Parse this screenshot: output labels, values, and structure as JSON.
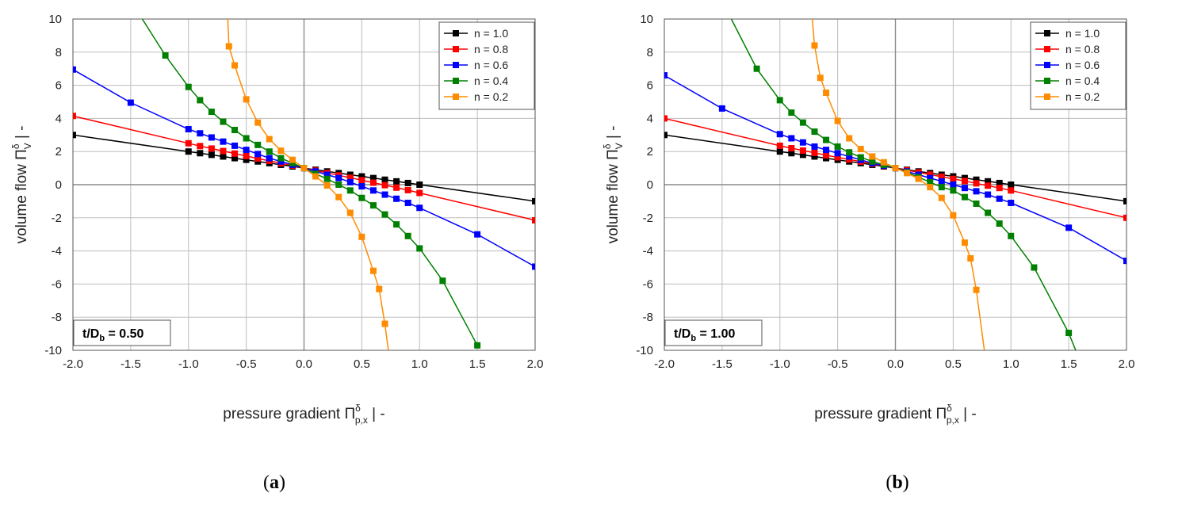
{
  "chart_data": [
    {
      "id": "a",
      "type": "line",
      "annotation": "t/D",
      "annotation_sub": "b",
      "annotation_value": " = 0.50",
      "xlabel": "pressure gradient Π",
      "xlabel_sup": "δ",
      "xlabel_sub": "p,x",
      "xlabel_unit": "  |  -",
      "ylabel": "volume flow Π",
      "ylabel_sup": "δ",
      "ylabel_sub": "V",
      "ylabel_unit": "  |  -",
      "xlim": [
        -2.0,
        2.0
      ],
      "ylim": [
        -10,
        10
      ],
      "xticks": [
        "-2.0",
        "-1.5",
        "-1.0",
        "-0.5",
        "0.0",
        "0.5",
        "1.0",
        "1.5",
        "2.0"
      ],
      "yticks": [
        "10",
        "8",
        "6",
        "4",
        "2",
        "0",
        "-2",
        "-4",
        "-6",
        "-8",
        "-10"
      ],
      "legend_position": "top-right",
      "series": [
        {
          "name": "n = 1.0",
          "color": "#000000",
          "x": [
            -2.0,
            -1.0,
            -0.9,
            -0.8,
            -0.7,
            -0.6,
            -0.5,
            -0.4,
            -0.3,
            -0.2,
            -0.1,
            0.0,
            0.1,
            0.2,
            0.3,
            0.4,
            0.5,
            0.6,
            0.7,
            0.8,
            0.9,
            1.0,
            2.0
          ],
          "y": [
            3.0,
            2.0,
            1.9,
            1.8,
            1.7,
            1.6,
            1.5,
            1.4,
            1.3,
            1.2,
            1.1,
            1.0,
            0.9,
            0.8,
            0.7,
            0.6,
            0.5,
            0.4,
            0.3,
            0.2,
            0.1,
            0.0,
            -1.0
          ]
        },
        {
          "name": "n = 0.8",
          "color": "#ff0000",
          "x": [
            -2.0,
            -1.0,
            -0.9,
            -0.8,
            -0.7,
            -0.6,
            -0.5,
            -0.4,
            -0.3,
            -0.2,
            -0.1,
            0.0,
            0.1,
            0.2,
            0.3,
            0.4,
            0.5,
            0.6,
            0.7,
            0.8,
            0.9,
            1.0,
            2.0
          ],
          "y": [
            4.15,
            2.5,
            2.33,
            2.18,
            2.03,
            1.88,
            1.73,
            1.58,
            1.44,
            1.29,
            1.15,
            1.0,
            0.85,
            0.71,
            0.56,
            0.42,
            0.27,
            0.12,
            -0.03,
            -0.18,
            -0.33,
            -0.5,
            -2.15
          ]
        },
        {
          "name": "n = 0.6",
          "color": "#0000ff",
          "x": [
            -2.0,
            -1.5,
            -1.0,
            -0.9,
            -0.8,
            -0.7,
            -0.6,
            -0.5,
            -0.4,
            -0.3,
            -0.2,
            -0.1,
            0.0,
            0.1,
            0.2,
            0.3,
            0.4,
            0.5,
            0.6,
            0.7,
            0.8,
            0.9,
            1.0,
            1.5,
            2.0
          ],
          "y": [
            6.95,
            4.95,
            3.35,
            3.1,
            2.85,
            2.6,
            2.35,
            2.1,
            1.85,
            1.6,
            1.4,
            1.2,
            1.0,
            0.8,
            0.6,
            0.4,
            0.15,
            -0.1,
            -0.35,
            -0.6,
            -0.85,
            -1.1,
            -1.4,
            -3.0,
            -4.95
          ]
        },
        {
          "name": "n = 0.4",
          "color": "#008000",
          "x": [
            -1.4,
            -1.2,
            -1.0,
            -0.9,
            -0.8,
            -0.7,
            -0.6,
            -0.5,
            -0.4,
            -0.3,
            -0.2,
            -0.1,
            0.0,
            0.1,
            0.2,
            0.3,
            0.4,
            0.5,
            0.6,
            0.7,
            0.8,
            0.9,
            1.0,
            1.2,
            1.5
          ],
          "y": [
            10.0,
            7.8,
            5.9,
            5.1,
            4.4,
            3.8,
            3.3,
            2.8,
            2.4,
            2.0,
            1.6,
            1.3,
            1.0,
            0.65,
            0.35,
            0.0,
            -0.35,
            -0.8,
            -1.25,
            -1.8,
            -2.4,
            -3.1,
            -3.85,
            -5.8,
            -9.7
          ]
        },
        {
          "name": "n = 0.2",
          "color": "#ff8c00",
          "x": [
            -0.66,
            -0.65,
            -0.6,
            -0.5,
            -0.4,
            -0.3,
            -0.2,
            -0.1,
            0.0,
            0.1,
            0.2,
            0.3,
            0.4,
            0.5,
            0.6,
            0.65,
            0.7,
            0.73
          ],
          "y": [
            10.0,
            8.35,
            7.2,
            5.15,
            3.75,
            2.75,
            2.05,
            1.5,
            1.0,
            0.5,
            -0.05,
            -0.75,
            -1.7,
            -3.15,
            -5.2,
            -6.3,
            -8.4,
            -10.0
          ]
        }
      ]
    },
    {
      "id": "b",
      "type": "line",
      "annotation": "t/D",
      "annotation_sub": "b",
      "annotation_value": " = 1.00",
      "xlabel": "pressure gradient Π",
      "xlabel_sup": "δ",
      "xlabel_sub": "p,x",
      "xlabel_unit": "  |  -",
      "ylabel": "volume flow Π",
      "ylabel_sup": "δ",
      "ylabel_sub": "V",
      "ylabel_unit": "  |  -",
      "xlim": [
        -2.0,
        2.0
      ],
      "ylim": [
        -10,
        10
      ],
      "xticks": [
        "-2.0",
        "-1.5",
        "-1.0",
        "-0.5",
        "0.0",
        "0.5",
        "1.0",
        "1.5",
        "2.0"
      ],
      "yticks": [
        "10",
        "8",
        "6",
        "4",
        "2",
        "0",
        "-2",
        "-4",
        "-6",
        "-8",
        "-10"
      ],
      "legend_position": "top-right",
      "series": [
        {
          "name": "n = 1.0",
          "color": "#000000",
          "x": [
            -2.0,
            -1.0,
            -0.9,
            -0.8,
            -0.7,
            -0.6,
            -0.5,
            -0.4,
            -0.3,
            -0.2,
            -0.1,
            0.0,
            0.1,
            0.2,
            0.3,
            0.4,
            0.5,
            0.6,
            0.7,
            0.8,
            0.9,
            1.0,
            2.0
          ],
          "y": [
            3.0,
            2.0,
            1.9,
            1.8,
            1.7,
            1.6,
            1.5,
            1.4,
            1.3,
            1.2,
            1.1,
            1.0,
            0.9,
            0.8,
            0.7,
            0.6,
            0.5,
            0.4,
            0.3,
            0.2,
            0.1,
            0.0,
            -1.0
          ]
        },
        {
          "name": "n = 0.8",
          "color": "#ff0000",
          "x": [
            -2.0,
            -1.0,
            -0.9,
            -0.8,
            -0.7,
            -0.6,
            -0.5,
            -0.4,
            -0.3,
            -0.2,
            -0.1,
            0.0,
            0.1,
            0.2,
            0.3,
            0.4,
            0.5,
            0.6,
            0.7,
            0.8,
            0.9,
            1.0,
            2.0
          ],
          "y": [
            4.0,
            2.35,
            2.2,
            2.06,
            1.92,
            1.78,
            1.65,
            1.52,
            1.39,
            1.26,
            1.13,
            1.0,
            0.87,
            0.74,
            0.61,
            0.48,
            0.35,
            0.22,
            0.08,
            -0.06,
            -0.2,
            -0.35,
            -2.0
          ]
        },
        {
          "name": "n = 0.6",
          "color": "#0000ff",
          "x": [
            -2.0,
            -1.5,
            -1.0,
            -0.9,
            -0.8,
            -0.7,
            -0.6,
            -0.5,
            -0.4,
            -0.3,
            -0.2,
            -0.1,
            0.0,
            0.1,
            0.2,
            0.3,
            0.4,
            0.5,
            0.6,
            0.7,
            0.8,
            0.9,
            1.0,
            1.5,
            2.0
          ],
          "y": [
            6.6,
            4.6,
            3.05,
            2.8,
            2.55,
            2.3,
            2.1,
            1.9,
            1.7,
            1.5,
            1.3,
            1.15,
            1.0,
            0.8,
            0.6,
            0.4,
            0.2,
            0.0,
            -0.2,
            -0.4,
            -0.6,
            -0.85,
            -1.1,
            -2.6,
            -4.6
          ]
        },
        {
          "name": "n = 0.4",
          "color": "#008000",
          "x": [
            -1.42,
            -1.2,
            -1.0,
            -0.9,
            -0.8,
            -0.7,
            -0.6,
            -0.5,
            -0.4,
            -0.3,
            -0.2,
            -0.1,
            0.0,
            0.1,
            0.2,
            0.3,
            0.4,
            0.5,
            0.6,
            0.7,
            0.8,
            0.9,
            1.0,
            1.2,
            1.5,
            1.56
          ],
          "y": [
            10.0,
            7.0,
            5.1,
            4.35,
            3.75,
            3.2,
            2.7,
            2.3,
            1.95,
            1.65,
            1.4,
            1.2,
            1.0,
            0.75,
            0.45,
            0.15,
            -0.15,
            -0.35,
            -0.75,
            -1.15,
            -1.7,
            -2.35,
            -3.1,
            -5.0,
            -8.95,
            -10.0
          ]
        },
        {
          "name": "n = 0.2",
          "color": "#ff8c00",
          "x": [
            -0.72,
            -0.7,
            -0.65,
            -0.6,
            -0.5,
            -0.4,
            -0.3,
            -0.2,
            -0.1,
            0.0,
            0.1,
            0.2,
            0.3,
            0.4,
            0.5,
            0.6,
            0.65,
            0.7,
            0.77
          ],
          "y": [
            10.0,
            8.4,
            6.45,
            5.55,
            3.85,
            2.8,
            2.15,
            1.7,
            1.35,
            1.0,
            0.7,
            0.35,
            -0.15,
            -0.8,
            -1.85,
            -3.5,
            -4.45,
            -6.35,
            -10.0
          ]
        }
      ]
    }
  ],
  "captions": [
    {
      "label": "a",
      "text_open": "(",
      "text_close": ")"
    },
    {
      "label": "b",
      "text_open": "(",
      "text_close": ")"
    }
  ]
}
